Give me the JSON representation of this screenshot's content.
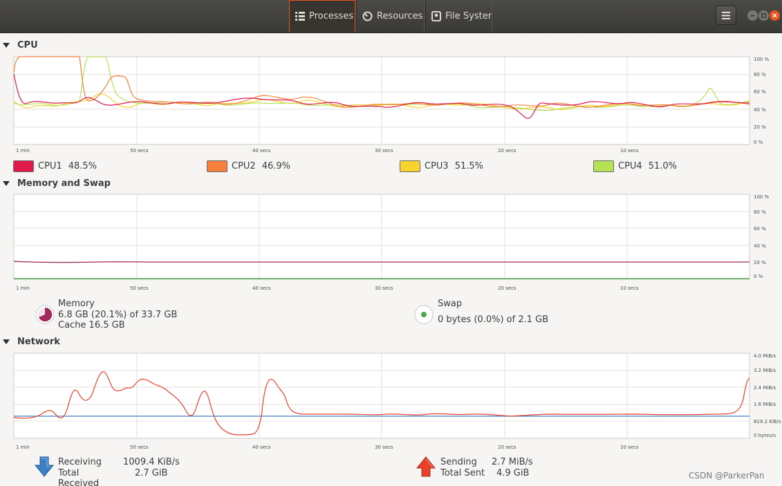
{
  "header": {
    "tabs": [
      {
        "label": "Processes",
        "icon": "list-icon",
        "active": true
      },
      {
        "label": "Resources",
        "icon": "gauge-icon",
        "active": false
      },
      {
        "label": "File Systems",
        "icon": "disk-icon",
        "active": false
      }
    ]
  },
  "cpu": {
    "title": "CPU",
    "x_ticks": [
      "1 min",
      "50 secs",
      "40 secs",
      "30 secs",
      "20 secs",
      "10 secs"
    ],
    "y_ticks": [
      "100 %",
      "80 %",
      "60 %",
      "40 %",
      "20 %",
      "0 %"
    ],
    "legend": [
      {
        "name": "CPU1",
        "value": "48.5%",
        "color": "#e01b4c"
      },
      {
        "name": "CPU2",
        "value": "46.9%",
        "color": "#f5813c"
      },
      {
        "name": "CPU3",
        "value": "51.5%",
        "color": "#f6d32d"
      },
      {
        "name": "CPU4",
        "value": "51.0%",
        "color": "#b5e254"
      }
    ]
  },
  "memory": {
    "title": "Memory and Swap",
    "x_ticks": [
      "1 min",
      "50 secs",
      "40 secs",
      "30 secs",
      "20 secs",
      "10 secs"
    ],
    "y_ticks": [
      "100 %",
      "80 %",
      "60 %",
      "40 %",
      "20 %",
      "0 %"
    ],
    "mem_label": "Memory",
    "mem_line1": "6.8 GB (20.1%) of 33.7 GB",
    "mem_line2": "Cache 16.5 GB",
    "swap_label": "Swap",
    "swap_line1": "0 bytes (0.0%) of 2.1 GB",
    "mem_color": "#a2275a",
    "swap_color": "#4ea84e"
  },
  "network": {
    "title": "Network",
    "x_ticks": [
      "1 min",
      "50 secs",
      "40 secs",
      "30 secs",
      "20 secs",
      "10 secs"
    ],
    "y_ticks": [
      "4.0 MiB/s",
      "3.2 MiB/s",
      "2.4 MiB/s",
      "1.6 MiB/s",
      "819.2 KiB/s",
      "0 bytes/s"
    ],
    "receiving_label": "Receiving",
    "receiving_value": "1009.4 KiB/s",
    "total_received_label": "Total Received",
    "total_received_value": "2.7 GiB",
    "sending_label": "Sending",
    "sending_value": "2.7 MiB/s",
    "total_sent_label": "Total Sent",
    "total_sent_value": "4.9 GiB",
    "recv_color": "#3d7fc5",
    "send_color": "#e8402a"
  },
  "watermark": "CSDN @ParkerPan"
}
